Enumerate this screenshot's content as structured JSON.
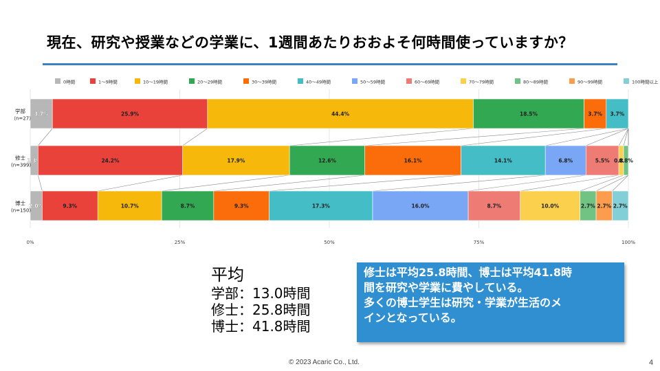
{
  "slide": {
    "title": "現在、研究や授業などの学業に、1週間あたりおおよそ何時間使っていますか？",
    "footer": "© 2023 Acaric Co., Ltd.",
    "page_number": "4"
  },
  "average": {
    "title": "平均",
    "lines": [
      "学部：13.0時間",
      "修士：25.8時間",
      "博士：41.8時間"
    ]
  },
  "callout": {
    "lines": [
      "修士は平均25.8時間、博士は平均41.8時",
      "間を研究や学業に費やしている。",
      "多くの博士学生は研究・学業が生活のメ",
      "インとなっている。"
    ]
  },
  "chart_data": {
    "type": "bar",
    "orientation": "horizontal-100%-stacked",
    "categories": [
      {
        "name": "学部",
        "n": "（n=27）"
      },
      {
        "name": "修士",
        "n": "(n=399)"
      },
      {
        "name": "博士",
        "n": "(n=150)"
      }
    ],
    "x_ticks": [
      "0%",
      "25%",
      "50%",
      "75%",
      "100%"
    ],
    "xlim": [
      0,
      100
    ],
    "legend_position": "top",
    "series": [
      {
        "name": "0時間",
        "color": "#b7b7b7",
        "values": [
          3.7,
          1.3,
          2.0
        ],
        "labels": [
          "3.7%",
          "1.3%",
          "2.0%"
        ]
      },
      {
        "name": "1～9時間",
        "color": "#e8423b",
        "values": [
          25.9,
          24.2,
          9.3
        ],
        "labels": [
          "25.9%",
          "24.2%",
          "9.3%"
        ]
      },
      {
        "name": "10～19時間",
        "color": "#f6b90b",
        "values": [
          44.4,
          17.9,
          10.7
        ],
        "labels": [
          "44.4%",
          "17.9%",
          "10.7%"
        ]
      },
      {
        "name": "20～29時間",
        "color": "#33a852",
        "values": [
          18.5,
          12.6,
          8.7
        ],
        "labels": [
          "18.5%",
          "12.6%",
          "8.7%"
        ]
      },
      {
        "name": "30～39時間",
        "color": "#fb6c0b",
        "values": [
          3.7,
          16.1,
          9.3
        ],
        "labels": [
          "3.7%",
          "16.1%",
          "9.3%"
        ]
      },
      {
        "name": "40～49時間",
        "color": "#45bdc6",
        "values": [
          3.7,
          14.1,
          17.3
        ],
        "labels": [
          "3.7%",
          "14.1%",
          "17.3%"
        ]
      },
      {
        "name": "50～59時間",
        "color": "#7aa7f5",
        "values": [
          0,
          6.8,
          16.0
        ],
        "labels": [
          "",
          "6.8%",
          "16.0%"
        ]
      },
      {
        "name": "60～69時間",
        "color": "#ef7b75",
        "values": [
          0,
          5.5,
          8.7
        ],
        "labels": [
          "",
          "5.5%",
          "8.7%"
        ]
      },
      {
        "name": "70～79時間",
        "color": "#fbd04c",
        "values": [
          0,
          0.8,
          10.0
        ],
        "labels": [
          "",
          "0.8%",
          "10.0%"
        ]
      },
      {
        "name": "80～89時間",
        "color": "#70c382",
        "values": [
          0,
          0.8,
          2.7
        ],
        "labels": [
          "",
          "0.8%",
          "2.7%"
        ]
      },
      {
        "name": "90～99時間",
        "color": "#fc9d4e",
        "values": [
          0,
          0,
          2.7
        ],
        "labels": [
          "",
          "",
          "2.7%"
        ]
      },
      {
        "name": "100時間以上",
        "color": "#82cfd7",
        "values": [
          0,
          0,
          2.7
        ],
        "labels": [
          "",
          "",
          "2.7%"
        ]
      }
    ]
  }
}
